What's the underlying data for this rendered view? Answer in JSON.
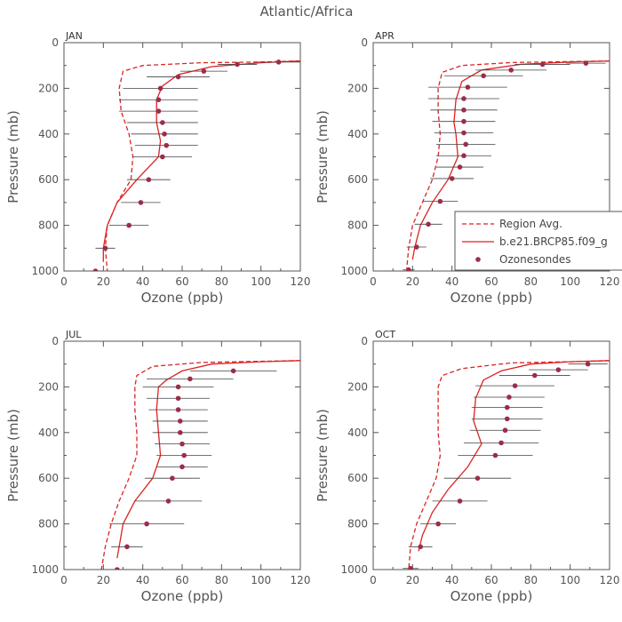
{
  "figure": {
    "title": "Atlantic/Africa"
  },
  "legend": {
    "items": [
      {
        "label": "Region Avg.",
        "style": "dashed"
      },
      {
        "label": "b.e21.BRCP85.f09_g",
        "style": "solid"
      },
      {
        "label": "Ozonesondes",
        "style": "marker"
      }
    ]
  },
  "colors": {
    "model": "#dd2222",
    "sonde": "#9b2d4a",
    "errorbar": "#444444",
    "axis": "#555555"
  },
  "chart_data": [
    {
      "type": "line",
      "panel_label": "JAN",
      "xlabel": "Ozone (ppb)",
      "ylabel": "Pressure (mb)",
      "xlim": [
        0,
        120
      ],
      "ylim": [
        1000,
        0
      ],
      "xticks": [
        "0",
        "20",
        "40",
        "60",
        "80",
        "100",
        "120"
      ],
      "yticks": [
        "0",
        "200",
        "400",
        "600",
        "800",
        "1000"
      ],
      "grid": false,
      "series": [
        {
          "name": "Region Avg.",
          "style": "dashed",
          "x": [
            120,
            100,
            70,
            40,
            30,
            28,
            29,
            33,
            35,
            34,
            27,
            22,
            21,
            22
          ],
          "y": [
            80,
            85,
            88,
            100,
            125,
            200,
            300,
            400,
            500,
            600,
            700,
            800,
            900,
            1000
          ]
        },
        {
          "name": "b.e21.BRCP85.f09_g",
          "style": "solid",
          "x": [
            120,
            100,
            75,
            58,
            50,
            47,
            47,
            49,
            48,
            37,
            27,
            22,
            20,
            20
          ],
          "y": [
            80,
            88,
            105,
            140,
            190,
            250,
            350,
            430,
            500,
            600,
            700,
            800,
            900,
            960
          ]
        },
        {
          "name": "Ozonesondes",
          "style": "marker",
          "x": [
            109,
            88,
            71,
            58,
            49,
            48,
            48,
            50,
            51,
            52,
            50,
            43,
            39,
            33,
            21,
            16
          ],
          "y": [
            85,
            95,
            125,
            150,
            200,
            250,
            300,
            350,
            400,
            450,
            500,
            600,
            700,
            800,
            900,
            1000
          ],
          "xerr": [
            11,
            10,
            12,
            16,
            19,
            20,
            20,
            18,
            17,
            16,
            15,
            11,
            10,
            10,
            5,
            3
          ]
        }
      ]
    },
    {
      "type": "line",
      "panel_label": "APR",
      "xlabel": "Ozone (ppb)",
      "ylabel": "Pressure (mb)",
      "xlim": [
        0,
        120
      ],
      "ylim": [
        1000,
        0
      ],
      "xticks": [
        "0",
        "20",
        "40",
        "60",
        "80",
        "100",
        "120"
      ],
      "yticks": [
        "0",
        "200",
        "400",
        "600",
        "800",
        "1000"
      ],
      "grid": false,
      "series": [
        {
          "name": "Region Avg.",
          "style": "dashed",
          "x": [
            120,
            100,
            70,
            45,
            35,
            33,
            33,
            34,
            33,
            30,
            25,
            20,
            18,
            17
          ],
          "y": [
            80,
            83,
            87,
            100,
            130,
            200,
            300,
            400,
            500,
            600,
            700,
            800,
            900,
            990
          ]
        },
        {
          "name": "b.e21.BRCP85.f09_g",
          "style": "solid",
          "x": [
            120,
            100,
            75,
            55,
            45,
            42,
            41,
            42,
            43,
            38,
            30,
            24,
            21,
            20
          ],
          "y": [
            80,
            85,
            95,
            120,
            170,
            250,
            350,
            400,
            500,
            600,
            700,
            800,
            900,
            950
          ]
        },
        {
          "name": "Ozonesondes",
          "style": "marker",
          "x": [
            108,
            86,
            70,
            56,
            48,
            46,
            46,
            46,
            46,
            47,
            46,
            44,
            40,
            34,
            28,
            22,
            18
          ],
          "y": [
            90,
            95,
            120,
            145,
            195,
            245,
            295,
            345,
            395,
            445,
            495,
            545,
            595,
            695,
            795,
            895,
            995
          ],
          "xerr": [
            10,
            14,
            18,
            20,
            20,
            18,
            17,
            16,
            15,
            15,
            14,
            12,
            11,
            9,
            7,
            5,
            3
          ]
        }
      ]
    },
    {
      "type": "line",
      "panel_label": "JUL",
      "xlabel": "Ozone (ppb)",
      "ylabel": "Pressure (mb)",
      "xlim": [
        0,
        120
      ],
      "ylim": [
        1000,
        0
      ],
      "xticks": [
        "0",
        "20",
        "40",
        "60",
        "80",
        "100",
        "120"
      ],
      "yticks": [
        "0",
        "200",
        "400",
        "600",
        "800",
        "1000"
      ],
      "grid": false,
      "series": [
        {
          "name": "Region Avg.",
          "style": "dashed",
          "x": [
            120,
            100,
            70,
            45,
            37,
            36,
            36,
            37,
            37,
            33,
            28,
            24,
            21,
            19
          ],
          "y": [
            85,
            88,
            93,
            110,
            150,
            200,
            300,
            400,
            500,
            600,
            700,
            800,
            900,
            1000
          ]
        },
        {
          "name": "b.e21.BRCP85.f09_g",
          "style": "solid",
          "x": [
            120,
            100,
            75,
            60,
            52,
            48,
            47,
            48,
            49,
            45,
            36,
            30,
            28,
            27
          ],
          "y": [
            85,
            90,
            100,
            130,
            170,
            200,
            300,
            400,
            500,
            600,
            700,
            800,
            900,
            950
          ]
        },
        {
          "name": "Ozonesondes",
          "style": "marker",
          "x": [
            86,
            64,
            58,
            58,
            58,
            59,
            59,
            60,
            61,
            60,
            55,
            53,
            42,
            32,
            27
          ],
          "y": [
            130,
            165,
            200,
            250,
            300,
            350,
            400,
            450,
            500,
            550,
            600,
            700,
            800,
            900,
            1000
          ],
          "xerr": [
            22,
            22,
            18,
            16,
            15,
            14,
            14,
            14,
            14,
            13,
            14,
            17,
            19,
            8,
            8
          ]
        }
      ]
    },
    {
      "type": "line",
      "panel_label": "OCT",
      "xlabel": "Ozone (ppb)",
      "ylabel": "Pressure (mb)",
      "xlim": [
        0,
        120
      ],
      "ylim": [
        1000,
        0
      ],
      "xticks": [
        "0",
        "20",
        "40",
        "60",
        "80",
        "100",
        "120"
      ],
      "yticks": [
        "0",
        "200",
        "400",
        "600",
        "800",
        "1000"
      ],
      "grid": false,
      "series": [
        {
          "name": "Region Avg.",
          "style": "dashed",
          "x": [
            120,
            100,
            70,
            45,
            35,
            33,
            33,
            33,
            34,
            32,
            27,
            22,
            19,
            18
          ],
          "y": [
            85,
            90,
            95,
            120,
            150,
            200,
            300,
            400,
            500,
            600,
            700,
            800,
            900,
            1000
          ]
        },
        {
          "name": "b.e21.BRCP85.f09_g",
          "style": "solid",
          "x": [
            120,
            100,
            80,
            65,
            56,
            52,
            51,
            53,
            55,
            48,
            38,
            30,
            25,
            23
          ],
          "y": [
            85,
            90,
            100,
            130,
            170,
            250,
            350,
            400,
            450,
            550,
            650,
            750,
            850,
            920
          ]
        },
        {
          "name": "Ozonesondes",
          "style": "marker",
          "x": [
            109,
            94,
            82,
            72,
            69,
            68,
            68,
            67,
            65,
            62,
            53,
            44,
            33,
            24,
            19
          ],
          "y": [
            100,
            125,
            150,
            195,
            245,
            290,
            340,
            390,
            445,
            500,
            600,
            700,
            800,
            900,
            995
          ],
          "xerr": [
            10,
            15,
            18,
            20,
            18,
            18,
            18,
            18,
            19,
            19,
            17,
            14,
            9,
            6,
            4
          ]
        }
      ]
    }
  ]
}
